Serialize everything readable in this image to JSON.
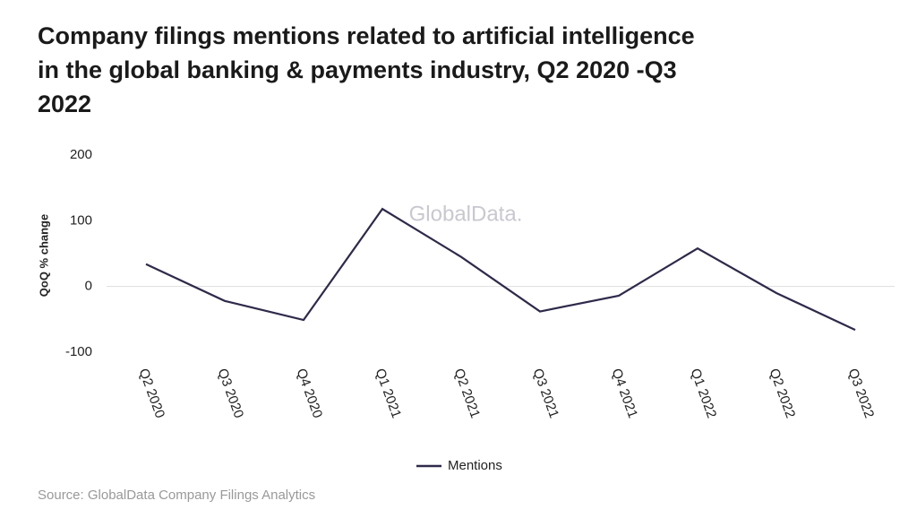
{
  "chart_data": {
    "type": "line",
    "title_lines": [
      "Company filings mentions related to artificial intelligence",
      "in the global banking & payments industry, Q2 2020 -Q3",
      "2022"
    ],
    "categories": [
      "Q2 2020",
      "Q3 2020",
      "Q4 2020",
      "Q1 2021",
      "Q2 2021",
      "Q3 2021",
      "Q4 2021",
      "Q1 2022",
      "Q2 2022",
      "Q3 2022"
    ],
    "series": [
      {
        "name": "Mentions",
        "color": "#2e2a4a",
        "values": [
          34,
          -22,
          -51,
          118,
          45,
          -38,
          -14,
          58,
          -10,
          -66
        ]
      }
    ],
    "ylabel": "QoQ % change",
    "ylim": [
      -100,
      200
    ],
    "yticks": [
      -100,
      0,
      100,
      200
    ],
    "zero_line": true,
    "watermark": "GlobalData.",
    "source": "Source: GlobalData Company Filings Analytics",
    "legend": "bottom"
  }
}
